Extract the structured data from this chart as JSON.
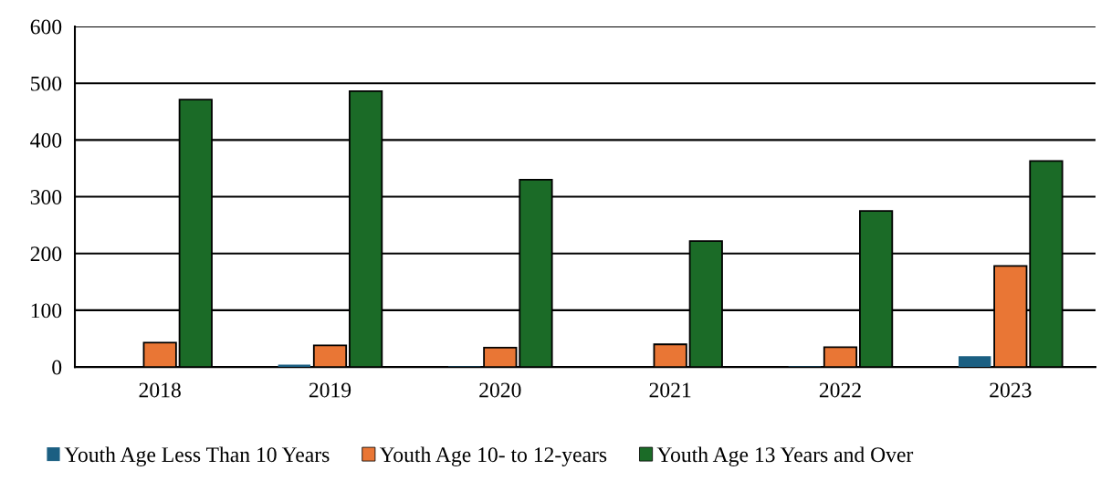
{
  "chart_data": {
    "type": "bar",
    "categories": [
      "2018",
      "2019",
      "2020",
      "2021",
      "2022",
      "2023"
    ],
    "series": [
      {
        "name": "Youth Age Less Than 10 Years",
        "color": "#1b5f82",
        "values": [
          0,
          4,
          1,
          0,
          1,
          19
        ]
      },
      {
        "name": "Youth Age 10- to 12-years",
        "color": "#e97635",
        "values": [
          43,
          38,
          34,
          40,
          35,
          178
        ]
      },
      {
        "name": "Youth Age 13 Years and Over",
        "color": "#1b6b27",
        "values": [
          471,
          486,
          330,
          222,
          275,
          363
        ]
      }
    ],
    "ylim": [
      0,
      600
    ],
    "yticks": [
      0,
      100,
      200,
      300,
      400,
      500,
      600
    ],
    "grid": "y",
    "legend": "bottom"
  }
}
